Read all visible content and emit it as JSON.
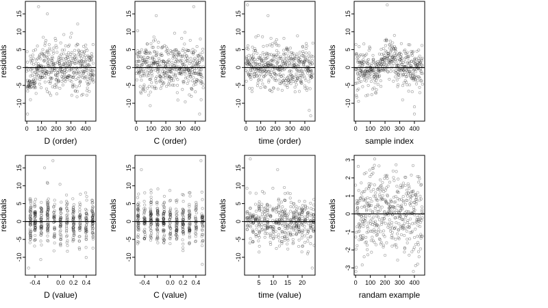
{
  "figure": {
    "panel_count": 8,
    "layout": "2 rows x 4 columns"
  },
  "chart_data": [
    {
      "type": "scatter",
      "xlabel": "D (order)",
      "ylabel": "residuals",
      "xlim": [
        -10,
        470
      ],
      "ylim": [
        -15,
        18.5
      ],
      "xticks": [
        0,
        100,
        200,
        300,
        400
      ],
      "yticks": [
        -10,
        -5,
        0,
        5,
        10,
        15
      ],
      "hline": 0,
      "n_points": 456,
      "pattern": "order",
      "features": {
        "low_cluster_x": [
          0,
          60
        ],
        "outliers": [
          [
            5,
            -13
          ],
          [
            80,
            17
          ],
          [
            140,
            15
          ],
          [
            25,
            -9
          ]
        ]
      }
    },
    {
      "type": "scatter",
      "xlabel": "C (order)",
      "ylabel": "residuals",
      "xlim": [
        -10,
        470
      ],
      "ylim": [
        -15,
        18.5
      ],
      "xticks": [
        0,
        100,
        200,
        300,
        400
      ],
      "yticks": [
        -10,
        -5,
        0,
        5,
        10,
        15
      ],
      "hline": 0,
      "n_points": 456,
      "pattern": "order",
      "features": {
        "outliers": [
          [
            135,
            14.5
          ],
          [
            390,
            17
          ],
          [
            430,
            -13
          ],
          [
            440,
            -9
          ]
        ]
      }
    },
    {
      "type": "scatter",
      "xlabel": "time (order)",
      "ylabel": "residuals",
      "xlim": [
        -10,
        470
      ],
      "ylim": [
        -15,
        18.5
      ],
      "xticks": [
        0,
        100,
        200,
        300,
        400
      ],
      "yticks": [
        -10,
        -5,
        0,
        5,
        10,
        15
      ],
      "hline": 0,
      "n_points": 456,
      "pattern": "order",
      "features": {
        "outliers": [
          [
            10,
            17.5
          ],
          [
            150,
            14.5
          ],
          [
            430,
            -12
          ],
          [
            440,
            -13.5
          ]
        ]
      }
    },
    {
      "type": "scatter",
      "xlabel": "sample index",
      "ylabel": "residuals",
      "xlim": [
        -10,
        470
      ],
      "ylim": [
        -15,
        18.5
      ],
      "xticks": [
        0,
        100,
        200,
        300,
        400
      ],
      "yticks": [
        -10,
        -5,
        0,
        5,
        10,
        15
      ],
      "hline": 0,
      "n_points": 456,
      "pattern": "sample",
      "features": {
        "outliers": [
          [
            215,
            17.5
          ],
          [
            20,
            -6
          ],
          [
            400,
            -13
          ],
          [
            400,
            -11
          ]
        ]
      }
    },
    {
      "type": "scatter",
      "xlabel": "D (value)",
      "ylabel": "residuals",
      "xlim": [
        -0.55,
        0.55
      ],
      "ylim": [
        -15,
        18.5
      ],
      "xticks": [
        -0.4,
        -0.2,
        0.0,
        0.2,
        0.4
      ],
      "xticklabels": [
        "-0.4",
        "",
        "0.0",
        "0.2",
        "0.4"
      ],
      "yticks": [
        -10,
        -5,
        0,
        5,
        10,
        15
      ],
      "hline": 0,
      "n_points": 456,
      "pattern": "value",
      "features": {
        "columns": [
          -0.47,
          -0.4,
          -0.3,
          -0.2,
          -0.1,
          0.0,
          0.1,
          0.2,
          0.3,
          0.4,
          0.5
        ],
        "outliers": [
          [
            -0.5,
            -13
          ],
          [
            -0.12,
            17
          ],
          [
            -0.25,
            15
          ]
        ]
      }
    },
    {
      "type": "scatter",
      "xlabel": "C (value)",
      "ylabel": "residuals",
      "xlim": [
        -0.55,
        0.55
      ],
      "ylim": [
        -15,
        18.5
      ],
      "xticks": [
        -0.4,
        -0.2,
        0.0,
        0.2,
        0.4
      ],
      "xticklabels": [
        "-0.4",
        "",
        "0.0",
        "0.2",
        "0.4"
      ],
      "yticks": [
        -10,
        -5,
        0,
        5,
        10,
        15
      ],
      "hline": 0,
      "n_points": 456,
      "pattern": "value",
      "features": {
        "columns": [
          -0.5,
          -0.4,
          -0.3,
          -0.2,
          -0.1,
          0.0,
          0.1,
          0.2,
          0.3,
          0.4,
          0.5
        ],
        "outliers": [
          [
            -0.45,
            14.5
          ],
          [
            0.48,
            17
          ],
          [
            0.5,
            -12
          ]
        ]
      }
    },
    {
      "type": "scatter",
      "xlabel": "time (value)",
      "ylabel": "residuals",
      "xlim": [
        0,
        24.5
      ],
      "ylim": [
        -15,
        18.5
      ],
      "xticks": [
        5,
        10,
        15,
        20
      ],
      "yticks": [
        -10,
        -5,
        0,
        5,
        10,
        15
      ],
      "hline": 0,
      "n_points": 456,
      "pattern": "time",
      "features": {
        "columns": [
          1,
          2,
          3,
          4,
          5,
          6,
          7,
          8,
          9,
          10,
          11,
          12,
          13,
          14,
          15,
          16,
          17,
          18,
          19,
          20,
          21,
          22,
          23,
          24
        ],
        "outliers": [
          [
            2,
            17.5
          ],
          [
            11.5,
            14.5
          ],
          [
            23.5,
            -13
          ]
        ]
      }
    },
    {
      "type": "scatter",
      "xlabel": "randam example",
      "ylabel": "residuals",
      "xlim": [
        -10,
        470
      ],
      "ylim": [
        -3.4,
        3.25
      ],
      "xticks": [
        0,
        100,
        200,
        300,
        400
      ],
      "yticks": [
        -3,
        -2,
        -1,
        0,
        1,
        2,
        3
      ],
      "hline": 0,
      "n_points": 456,
      "pattern": "random"
    }
  ]
}
